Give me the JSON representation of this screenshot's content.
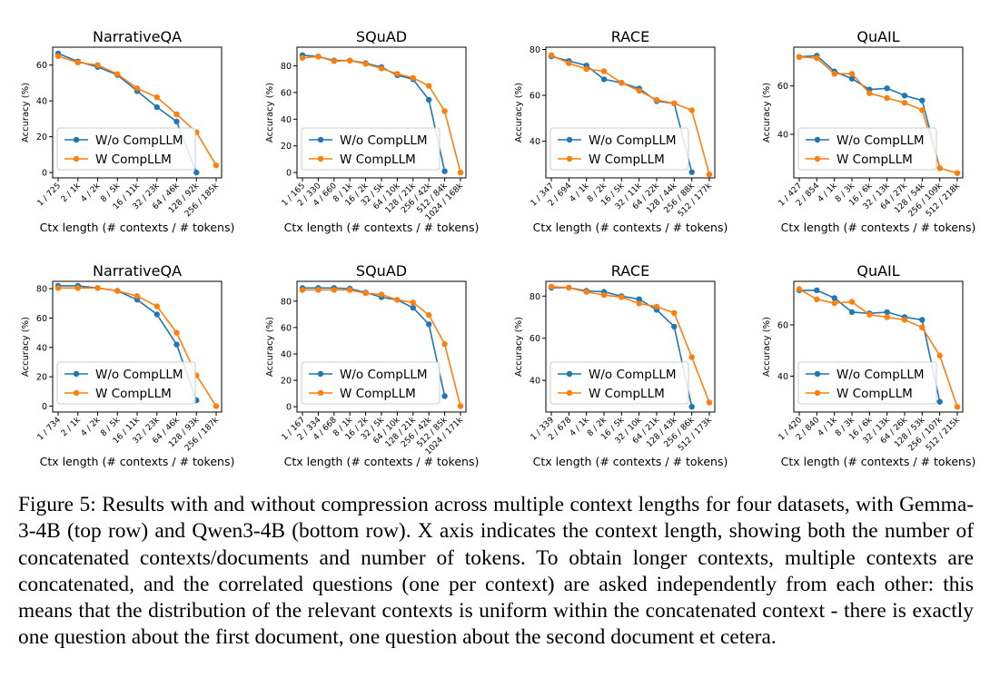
{
  "colors": {
    "series_wo": "#1f77b4",
    "series_w": "#ff7f0e",
    "axis": "#000000",
    "background": "#ffffff"
  },
  "chart_data": [
    {
      "type": "line",
      "title": "NarrativeQA",
      "model": "Gemma-3-4B",
      "xlabel": "Ctx length (# contexts / # tokens)",
      "ylabel": "Accuracy (%)",
      "categories": [
        "1 / 725",
        "2 / 1k",
        "4 / 2k",
        "8 / 5k",
        "16 / 11k",
        "32 / 23k",
        "64 / 46k",
        "128 / 92k",
        "256 / 185k"
      ],
      "ylim": [
        -3,
        70
      ],
      "yticks": [
        0,
        20,
        40,
        60
      ],
      "grid": false,
      "legend": "lower-left",
      "series": [
        {
          "name": "W/o CompLLM",
          "values": [
            66.5,
            62,
            59,
            54.5,
            45.5,
            36.5,
            28.5,
            0,
            null
          ]
        },
        {
          "name": "W CompLLM",
          "values": [
            65,
            61.5,
            60,
            55,
            47,
            42,
            32.5,
            22.5,
            4
          ]
        }
      ]
    },
    {
      "type": "line",
      "title": "SQuAD",
      "model": "Gemma-3-4B",
      "xlabel": "Ctx length (# contexts / # tokens)",
      "ylabel": "Accuracy (%)",
      "categories": [
        "1 / 165",
        "2 / 330",
        "4 / 660",
        "8 / 1k",
        "16 / 2k",
        "32 / 5k",
        "64 / 10k",
        "128 / 21k",
        "256 / 42k",
        "512 / 84k",
        "1024 / 168k"
      ],
      "ylim": [
        -4,
        94
      ],
      "yticks": [
        0,
        20,
        40,
        60,
        80
      ],
      "grid": false,
      "legend": "lower-left",
      "series": [
        {
          "name": "W/o CompLLM",
          "values": [
            88,
            87,
            84,
            84,
            82,
            79,
            73,
            70,
            54.5,
            1,
            null
          ]
        },
        {
          "name": "W CompLLM",
          "values": [
            86,
            87,
            83.5,
            84,
            81.5,
            78,
            74,
            71,
            65,
            46,
            0
          ]
        }
      ]
    },
    {
      "type": "line",
      "title": "RACE",
      "model": "Gemma-3-4B",
      "xlabel": "Ctx length (# contexts / # tokens)",
      "ylabel": "Accuracy (%)",
      "categories": [
        "1 / 347",
        "2 / 694",
        "4 / 1k",
        "8 / 2k",
        "16 / 5k",
        "32 / 11k",
        "64 / 22k",
        "128 / 44k",
        "256 / 88k",
        "512 / 177k"
      ],
      "ylim": [
        24,
        81
      ],
      "yticks": [
        40,
        60,
        80
      ],
      "grid": false,
      "legend": "lower-left",
      "series": [
        {
          "name": "W/o CompLLM",
          "values": [
            77,
            75,
            73,
            67,
            65.5,
            63,
            57.5,
            56.5,
            26.5,
            null
          ]
        },
        {
          "name": "W CompLLM",
          "values": [
            77.5,
            74,
            71.5,
            70.5,
            65.5,
            62,
            58,
            56.5,
            53.5,
            25.5
          ]
        }
      ]
    },
    {
      "type": "line",
      "title": "QuAIL",
      "model": "Gemma-3-4B",
      "xlabel": "Ctx length (# contexts / # tokens)",
      "ylabel": "Accuracy (%)",
      "categories": [
        "1 / 427",
        "2 / 854",
        "4 / 1k",
        "8 / 3k",
        "16 / 6k",
        "32 / 13k",
        "64 / 27k",
        "128 / 54k",
        "256 / 109k",
        "512 / 218k"
      ],
      "ylim": [
        22,
        76
      ],
      "yticks": [
        40,
        60
      ],
      "grid": false,
      "legend": "lower-left",
      "series": [
        {
          "name": "W/o CompLLM",
          "values": [
            72,
            72.5,
            66,
            63,
            58.5,
            59,
            56,
            54,
            26,
            null
          ]
        },
        {
          "name": "W CompLLM",
          "values": [
            72,
            71.5,
            65,
            65,
            57,
            55,
            53,
            50,
            26,
            24
          ]
        }
      ]
    },
    {
      "type": "line",
      "title": "NarrativeQA",
      "model": "Qwen3-4B",
      "xlabel": "Ctx length (# contexts / # tokens)",
      "ylabel": "Accuracy (%)",
      "categories": [
        "1 / 734",
        "2 / 1k",
        "4 / 2k",
        "8 / 5k",
        "16 / 11k",
        "32 / 23k",
        "64 / 46k",
        "128 / 93k",
        "256 / 187k"
      ],
      "ylim": [
        -4,
        85
      ],
      "yticks": [
        0,
        20,
        40,
        60,
        80
      ],
      "grid": false,
      "legend": "lower-left",
      "series": [
        {
          "name": "W/o CompLLM",
          "values": [
            82,
            82,
            80.5,
            78.5,
            72.5,
            62.5,
            42,
            4,
            null
          ]
        },
        {
          "name": "W CompLLM",
          "values": [
            80.5,
            80.5,
            80.5,
            78.5,
            75,
            68,
            50,
            21,
            0
          ]
        }
      ]
    },
    {
      "type": "line",
      "title": "SQuAD",
      "model": "Qwen3-4B",
      "xlabel": "Ctx length (# contexts / # tokens)",
      "ylabel": "Accuracy (%)",
      "categories": [
        "1 / 167",
        "2 / 334",
        "4 / 668",
        "8 / 1k",
        "16 / 2k",
        "32 / 5k",
        "64 / 10k",
        "128 / 21k",
        "256 / 42k",
        "512 / 85k",
        "1024 / 171k"
      ],
      "ylim": [
        -4,
        95
      ],
      "yticks": [
        0,
        20,
        40,
        60,
        80
      ],
      "grid": false,
      "legend": "lower-left",
      "series": [
        {
          "name": "W/o CompLLM",
          "values": [
            90,
            90,
            90,
            89.5,
            86.5,
            83,
            81,
            75,
            62.5,
            8,
            null
          ]
        },
        {
          "name": "W CompLLM",
          "values": [
            88.5,
            88.5,
            88.5,
            88.5,
            86,
            85,
            81,
            79,
            69.5,
            47.5,
            0.5
          ]
        }
      ]
    },
    {
      "type": "line",
      "title": "RACE",
      "model": "Qwen3-4B",
      "xlabel": "Ctx length (# contexts / # tokens)",
      "ylabel": "Accuracy (%)",
      "categories": [
        "1 / 339",
        "2 / 678",
        "4 / 1k",
        "8 / 2k",
        "16 / 5k",
        "32 / 10k",
        "64 / 21k",
        "128 / 43k",
        "256 / 86k",
        "512 / 173k"
      ],
      "ylim": [
        25,
        87
      ],
      "yticks": [
        40,
        60,
        80
      ],
      "grid": false,
      "legend": "lower-left",
      "series": [
        {
          "name": "W/o CompLLM",
          "values": [
            84,
            84,
            82.5,
            82,
            80,
            78.5,
            73.5,
            65.5,
            27.5,
            null
          ]
        },
        {
          "name": "W CompLLM",
          "values": [
            84.5,
            84,
            82,
            80.5,
            79.5,
            76.5,
            75,
            72,
            51,
            29.5
          ]
        }
      ]
    },
    {
      "type": "line",
      "title": "QuAIL",
      "model": "Qwen3-4B",
      "xlabel": "Ctx length (# contexts / # tokens)",
      "ylabel": "Accuracy (%)",
      "categories": [
        "1 / 420",
        "2 / 840",
        "4 / 1k",
        "8 / 3k",
        "16 / 6k",
        "32 / 13k",
        "64 / 26k",
        "128 / 53k",
        "256 / 107k",
        "512 / 215k"
      ],
      "ylim": [
        26,
        77
      ],
      "yticks": [
        40,
        60
      ],
      "grid": false,
      "legend": "lower-left",
      "series": [
        {
          "name": "W/o CompLLM",
          "values": [
            73.5,
            73.5,
            70.5,
            65,
            64.5,
            65,
            63,
            62,
            30,
            null
          ]
        },
        {
          "name": "W CompLLM",
          "values": [
            74,
            70,
            68.5,
            69,
            64,
            63,
            62,
            59,
            48,
            28
          ]
        }
      ]
    }
  ],
  "caption": "Figure 5: Results with and without compression across multiple context lengths for four datasets, with Gemma-3-4B (top row) and Qwen3-4B (bottom row). X axis indicates the context length, showing both the number of concatenated contexts/documents and number of tokens. To obtain longer contexts, multiple contexts are concatenated, and the correlated questions (one per context) are asked independently from each other: this means that the distribution of the relevant contexts is uniform within the concatenated context - there is exactly one question about the first document, one question about the second document et cetera."
}
